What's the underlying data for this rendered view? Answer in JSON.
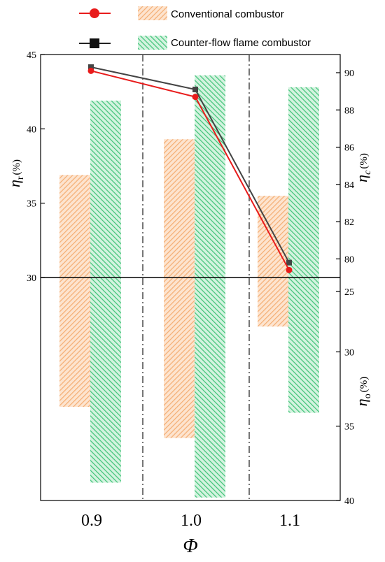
{
  "chart_data": {
    "type": "bar",
    "categories": [
      "0.9",
      "1.0",
      "1.1"
    ],
    "xlabel": "Φ",
    "y_left_upper": {
      "label_symbol": "η",
      "label_sub": "r",
      "label_unit": "(%)",
      "range": [
        30,
        45
      ],
      "ticks": [
        "30",
        "35",
        "40",
        "45"
      ]
    },
    "y_left_lower_shared_baseline": 30,
    "y_right_upper": {
      "label_symbol": "η",
      "label_sub": "c",
      "label_unit": "(%)",
      "range": [
        78,
        91
      ],
      "ticks": [
        "80",
        "82",
        "84",
        "86",
        "88",
        "90"
      ]
    },
    "y_right_lower": {
      "label_symbol": "η",
      "label_sub": "o",
      "label_unit": "(%)",
      "range": [
        25,
        40
      ],
      "inverted": true,
      "ticks": [
        "25",
        "30",
        "35",
        "40"
      ]
    },
    "series": [
      {
        "name": "Conventional combustor",
        "kind": "bar",
        "color": "#f8bf90",
        "eta_r": [
          36.9,
          39.3,
          35.5
        ],
        "eta_o": [
          33.7,
          35.8,
          28.3
        ]
      },
      {
        "name": "Counter-flow flame combustor",
        "kind": "bar",
        "color": "#58cf8a",
        "eta_r": [
          41.9,
          43.6,
          42.8
        ],
        "eta_o": [
          38.8,
          39.8,
          34.1
        ]
      },
      {
        "name": "Conventional combustor",
        "kind": "line",
        "color": "#e81b1b",
        "marker": "circle",
        "eta_c": [
          90.1,
          88.7,
          79.4
        ]
      },
      {
        "name": "Counter-flow flame combustor",
        "kind": "line",
        "color": "#444444",
        "marker": "square",
        "eta_c": [
          90.3,
          89.1,
          79.8
        ]
      }
    ],
    "legend": {
      "placement": "top",
      "entries": [
        "Conventional combustor",
        "Counter-flow flame combustor"
      ]
    },
    "separators": "dash-dot vertical lines between categories"
  }
}
